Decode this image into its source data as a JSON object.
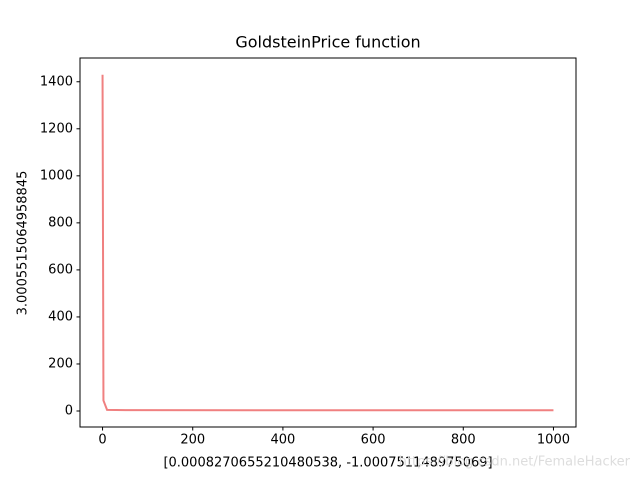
{
  "chart_data": {
    "type": "line",
    "title": "GoldsteinPrice function",
    "x_label": "[0.0008270655210480538, -1.000751148975069]",
    "y_label": "3.0005515064958845",
    "watermark": "https://blog.csdn.net/FemaleHacker",
    "x": [
      0,
      2,
      10,
      50,
      1000
    ],
    "series": [
      {
        "color": "#f08080",
        "values": [
          1430,
          45,
          5,
          3.5,
          3
        ]
      }
    ],
    "xlim": [
      -50,
      1050
    ],
    "xticks": [
      0,
      200,
      400,
      600,
      800,
      1000
    ],
    "ylim": [
      -68,
      1501
    ],
    "yticks": [
      0,
      200,
      400,
      600,
      800,
      1000,
      1200,
      1400
    ],
    "grid": false
  }
}
